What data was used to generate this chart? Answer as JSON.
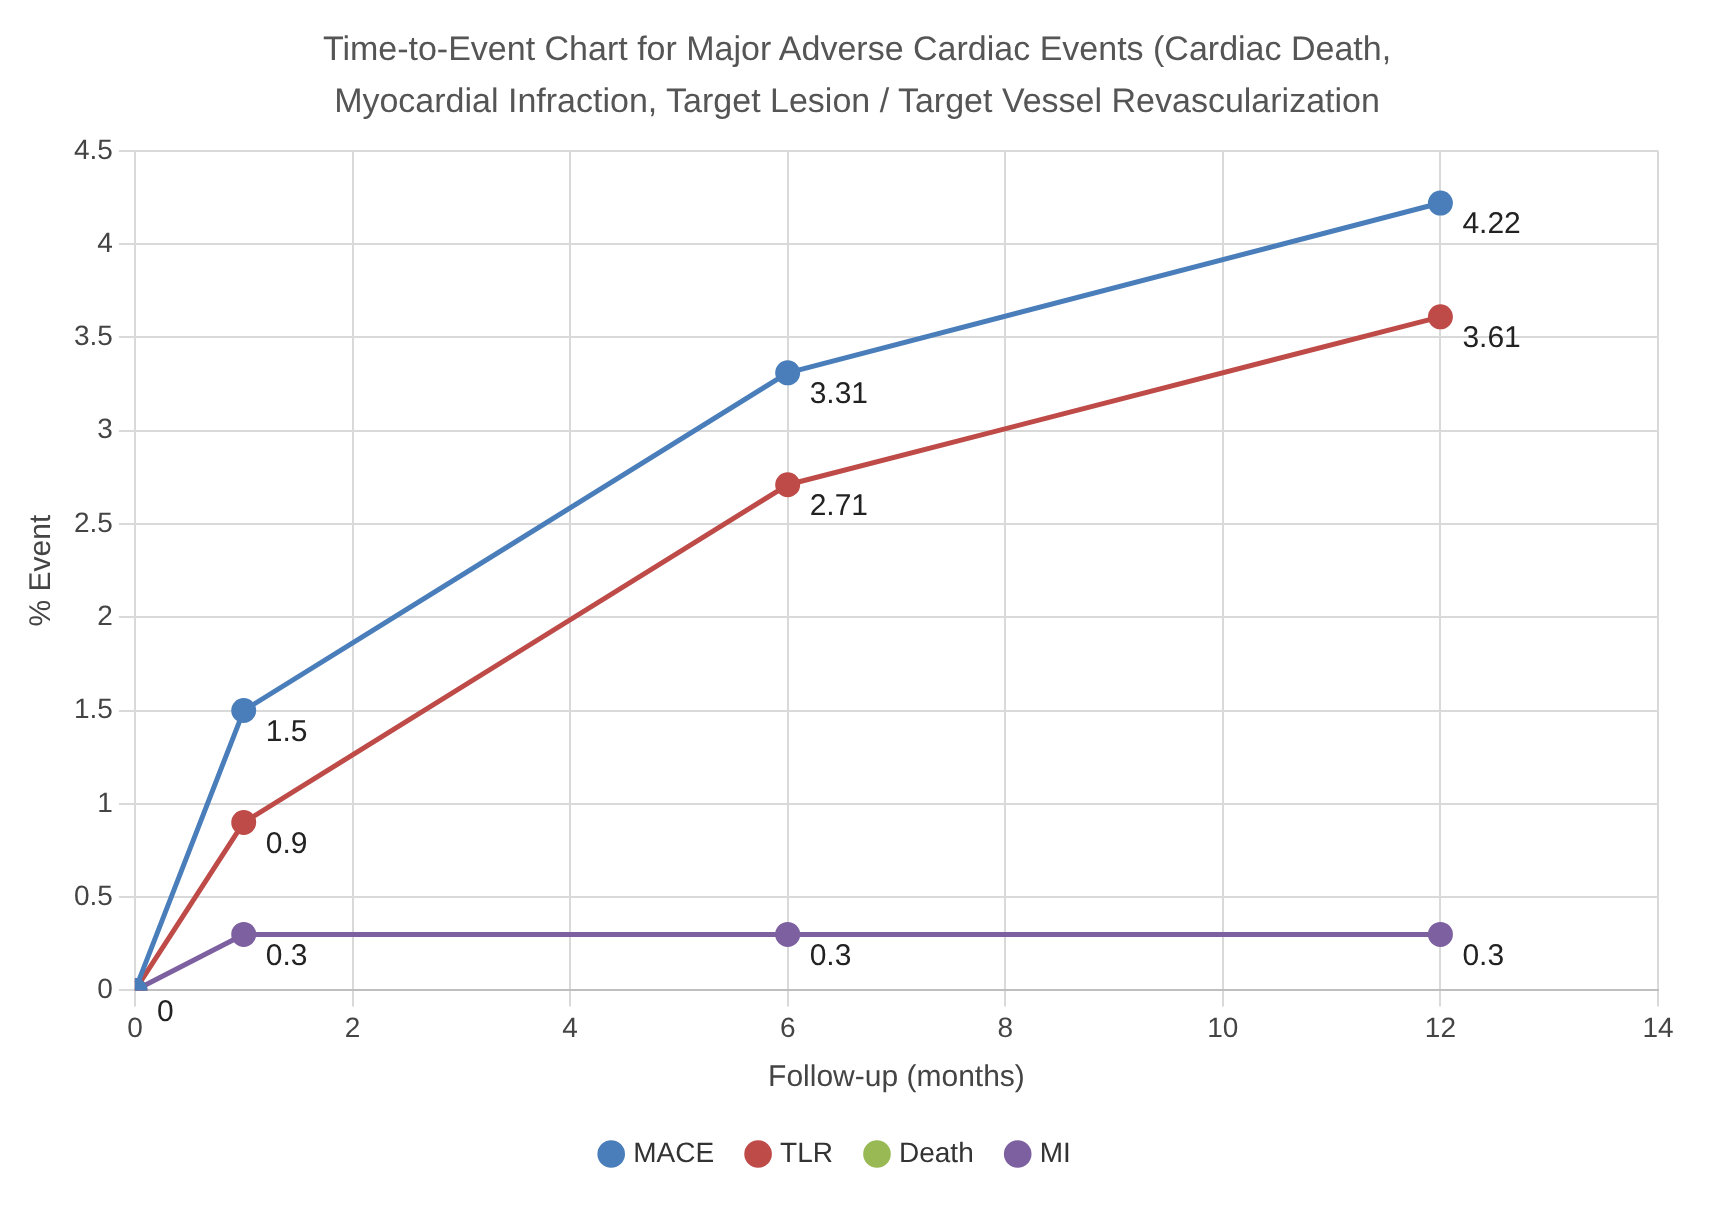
{
  "chart_data": {
    "type": "line",
    "title": "Time-to-Event Chart for Major Adverse Cardiac Events (Cardiac Death, Myocardial Infraction, Target Lesion / Target Vessel Revascularization",
    "xlabel": "Follow-up (months)",
    "ylabel": "% Event",
    "x": [
      0,
      1,
      6,
      12
    ],
    "series": [
      {
        "name": "MACE",
        "color": "#4a7ebb",
        "values": [
          0,
          1.5,
          3.31,
          4.22
        ],
        "value_labels": [
          null,
          "1.5",
          "3.31",
          "4.22"
        ]
      },
      {
        "name": "TLR",
        "color": "#be4b48",
        "values": [
          0,
          0.9,
          2.71,
          3.61
        ],
        "value_labels": [
          null,
          "0.9",
          "2.71",
          "3.61"
        ]
      },
      {
        "name": "Death",
        "color": "#98b954",
        "values": [
          null,
          null,
          null,
          null
        ]
      },
      {
        "name": "MI",
        "color": "#7d60a0",
        "values": [
          0,
          0.3,
          0.3,
          0.3
        ],
        "value_labels": [
          "0",
          "0.3",
          "0.3",
          "0.3"
        ]
      }
    ],
    "xlim": [
      0,
      14
    ],
    "xticks": [
      0,
      2,
      4,
      6,
      8,
      10,
      12,
      14
    ],
    "ylim": [
      0,
      4.5
    ],
    "yticks": [
      0,
      0.5,
      1,
      1.5,
      2,
      2.5,
      3,
      3.5,
      4,
      4.5
    ],
    "grid": true,
    "legend": "bottom",
    "marker": "circle",
    "line_style": "solid"
  }
}
